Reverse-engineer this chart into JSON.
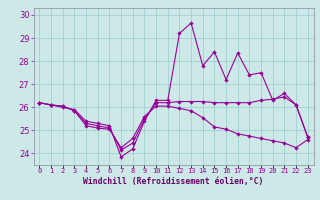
{
  "xlabel": "Windchill (Refroidissement éolien,°C)",
  "x": [
    0,
    1,
    2,
    3,
    4,
    5,
    6,
    7,
    8,
    9,
    10,
    11,
    12,
    13,
    14,
    15,
    16,
    17,
    18,
    19,
    20,
    21,
    22,
    23
  ],
  "line1": [
    26.2,
    26.1,
    26.0,
    25.9,
    25.4,
    25.3,
    25.2,
    23.85,
    24.2,
    25.4,
    26.3,
    26.3,
    29.2,
    29.65,
    27.8,
    28.4,
    27.2,
    28.35,
    27.4,
    27.5,
    26.3,
    26.6,
    26.1,
    24.7
  ],
  "line2": [
    26.2,
    26.1,
    26.05,
    25.85,
    25.3,
    25.2,
    25.1,
    24.15,
    24.45,
    25.5,
    26.2,
    26.2,
    26.25,
    26.25,
    26.25,
    26.2,
    26.2,
    26.2,
    26.2,
    26.3,
    26.35,
    26.45,
    26.1,
    24.7
  ],
  "line3": [
    26.2,
    26.1,
    26.05,
    25.85,
    25.2,
    25.1,
    25.05,
    24.25,
    24.65,
    25.6,
    26.05,
    26.05,
    25.95,
    25.85,
    25.55,
    25.15,
    25.05,
    24.85,
    24.75,
    24.65,
    24.55,
    24.45,
    24.25,
    24.6
  ],
  "bg_color": "#cce9e8",
  "grid_color": "#99cccc",
  "line_color": "#990099",
  "ylim_min": 23.5,
  "ylim_max": 30.3,
  "yticks": [
    24,
    25,
    26,
    27,
    28,
    29,
    30
  ],
  "tick_color": "#990099",
  "label_color": "#660066"
}
